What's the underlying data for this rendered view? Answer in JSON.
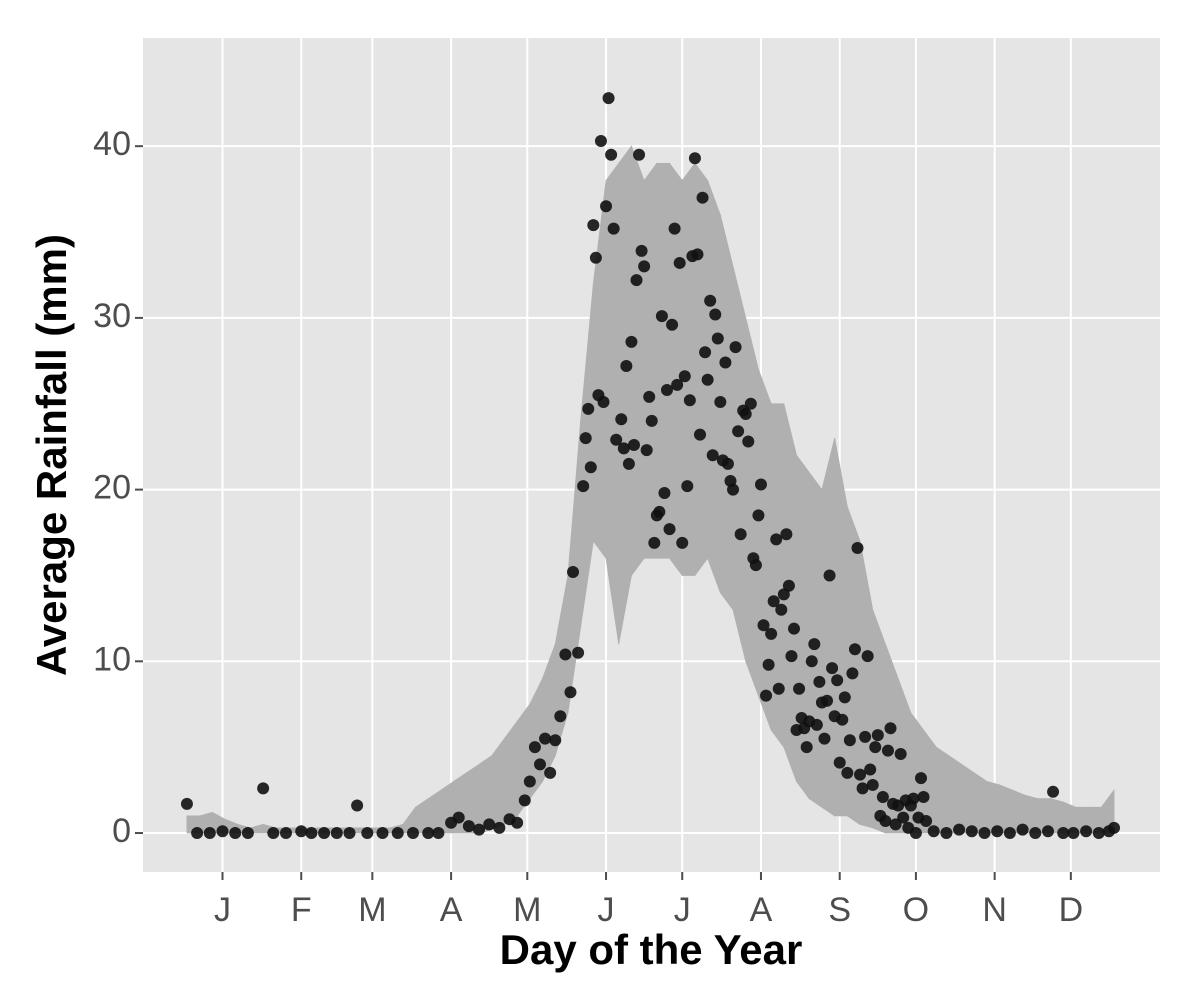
{
  "chart_data": {
    "type": "scatter",
    "x_label": "Day of the Year",
    "y_label": "Average Rainfall (mm)",
    "color": "#111111",
    "x": [
      1,
      5,
      10,
      15,
      20,
      25,
      31,
      35,
      40,
      46,
      50,
      55,
      60,
      65,
      68,
      72,
      78,
      84,
      90,
      96,
      100,
      105,
      108,
      112,
      116,
      120,
      124,
      128,
      131,
      134,
      136,
      138,
      140,
      142,
      144,
      146,
      148,
      150,
      152,
      153,
      155,
      157,
      158,
      159,
      160,
      161,
      162,
      163,
      164,
      165,
      166,
      167,
      168,
      169,
      170,
      172,
      173,
      174,
      175,
      176,
      177,
      178,
      179,
      180,
      181,
      182,
      183,
      184,
      185,
      186,
      187,
      188,
      189,
      190,
      191,
      192,
      193,
      194,
      195,
      196,
      197,
      198,
      199,
      200,
      201,
      202,
      203,
      204,
      205,
      206,
      207,
      208,
      209,
      210,
      211,
      212,
      213,
      214,
      215,
      216,
      217,
      218,
      219,
      220,
      221,
      222,
      223,
      224,
      225,
      226,
      227,
      228,
      229,
      230,
      231,
      232,
      233,
      234,
      235,
      236,
      237,
      238,
      239,
      240,
      241,
      242,
      243,
      244,
      245,
      246,
      247,
      248,
      249,
      250,
      251,
      252,
      253,
      254,
      255,
      256,
      257,
      258,
      259,
      260,
      261,
      262,
      263,
      264,
      265,
      266,
      267,
      268,
      269,
      270,
      271,
      272,
      273,
      274,
      275,
      276,
      277,
      278,
      279,
      280,
      281,
      282,
      283,
      284,
      285,
      286,
      287,
      288,
      289,
      290,
      291,
      292,
      295,
      300,
      305,
      310,
      315,
      320,
      325,
      330,
      335,
      340,
      342,
      346,
      350,
      355,
      360,
      364,
      366
    ],
    "values": [
      1.7,
      0,
      0,
      0.1,
      0,
      0,
      2.6,
      0,
      0,
      0.1,
      0,
      0,
      0,
      0,
      1.6,
      0,
      0,
      0,
      0,
      0,
      0,
      0.6,
      0.9,
      0.4,
      0.2,
      0.5,
      0.3,
      0.8,
      0.6,
      1.9,
      3,
      5,
      4,
      5.5,
      3.5,
      5.4,
      6.8,
      10.4,
      8.2,
      15.2,
      10.5,
      20.2,
      23,
      24.7,
      21.3,
      35.4,
      33.5,
      25.5,
      40.3,
      25.1,
      36.5,
      42.8,
      39.5,
      35.2,
      22.9,
      24.1,
      22.4,
      27.2,
      21.5,
      28.6,
      22.6,
      32.2,
      39.5,
      33.9,
      33,
      22.3,
      25.4,
      24,
      16.9,
      18.5,
      18.7,
      30.1,
      19.8,
      25.8,
      17.7,
      29.6,
      35.2,
      26.1,
      33.2,
      16.9,
      26.6,
      20.2,
      25.2,
      33.6,
      39.3,
      33.7,
      23.2,
      37,
      28,
      26.4,
      31,
      22,
      30.2,
      28.8,
      25.1,
      21.7,
      27.4,
      21.5,
      20.5,
      20,
      28.3,
      23.4,
      17.4,
      24.6,
      24.4,
      22.8,
      25,
      16,
      15.6,
      18.5,
      20.3,
      12.1,
      8,
      9.8,
      11.6,
      13.5,
      17.1,
      8.4,
      13,
      13.9,
      17.4,
      14.4,
      10.3,
      11.9,
      6,
      8.4,
      6.7,
      6.1,
      5,
      6.5,
      10,
      11,
      6.3,
      8.8,
      7.6,
      5.5,
      7.7,
      15,
      9.6,
      6.8,
      8.9,
      4.1,
      6.6,
      7.9,
      3.5,
      5.4,
      9.3,
      10.7,
      16.6,
      3.4,
      2.6,
      5.6,
      10.3,
      3.7,
      2.8,
      5,
      5.7,
      1,
      2.1,
      0.7,
      4.8,
      6.1,
      1.7,
      0.5,
      1.6,
      4.6,
      0.9,
      1.9,
      0.3,
      1.6,
      2,
      0,
      0.9,
      3.2,
      2.1,
      0.7,
      0.1,
      0,
      0.2,
      0.1,
      0,
      0.1,
      0,
      0.2,
      0,
      0.1,
      2.4,
      0,
      0,
      0.1,
      0,
      0.1,
      0.3
    ],
    "band": {
      "color": "#b0b0b0",
      "x": [
        1,
        6,
        11,
        16,
        21,
        26,
        31,
        36,
        41,
        46,
        51,
        56,
        61,
        66,
        71,
        76,
        81,
        86,
        91,
        96,
        101,
        106,
        111,
        116,
        121,
        126,
        131,
        136,
        141,
        146,
        151,
        156,
        161,
        166,
        171,
        176,
        181,
        186,
        191,
        196,
        201,
        206,
        211,
        216,
        221,
        226,
        231,
        236,
        241,
        246,
        251,
        256,
        261,
        266,
        271,
        276,
        281,
        286,
        291,
        296,
        301,
        306,
        311,
        316,
        321,
        326,
        331,
        336,
        341,
        346,
        351,
        356,
        361,
        366
      ],
      "lower": [
        0,
        0,
        0,
        0,
        0,
        0,
        0,
        0,
        0,
        0,
        0,
        0,
        0,
        0,
        0,
        0,
        0,
        0,
        0,
        0,
        0,
        0,
        0,
        0,
        0.2,
        0.5,
        1,
        2,
        3,
        4.5,
        7,
        12,
        17,
        16,
        11,
        15,
        16,
        16,
        16,
        15,
        15,
        16,
        14,
        13,
        10,
        8,
        6,
        5,
        3,
        2,
        1.5,
        1,
        1,
        0.5,
        0.3,
        0,
        0,
        0,
        0,
        0,
        0,
        0,
        0,
        0,
        0,
        0,
        0,
        0,
        0,
        0,
        0,
        0,
        0,
        0
      ],
      "upper": [
        1,
        1,
        1.2,
        0.8,
        0.5,
        0.3,
        0.5,
        0.3,
        0.3,
        0.3,
        0.3,
        0.3,
        0.3,
        0.3,
        0.3,
        0.3,
        0.3,
        0.5,
        1.5,
        2,
        2.5,
        3,
        3.5,
        4,
        4.5,
        5.5,
        6.5,
        7.5,
        9,
        11,
        15,
        24,
        32,
        38,
        39,
        40,
        38,
        39,
        39,
        38,
        39,
        38,
        36,
        33,
        30,
        27,
        25,
        25,
        22,
        21,
        20,
        23,
        19,
        17,
        13,
        11,
        9,
        7,
        6,
        5,
        4.5,
        4,
        3.5,
        3,
        2.8,
        2.5,
        2.2,
        2,
        2,
        1.8,
        1.5,
        1.5,
        1.5,
        2.5
      ]
    },
    "xlim": [
      -16.3,
      384.1
    ],
    "ylim": [
      -2.27,
      46.3
    ],
    "xticks": [
      {
        "value": 15,
        "label": "J"
      },
      {
        "value": 46,
        "label": "F"
      },
      {
        "value": 74,
        "label": "M"
      },
      {
        "value": 105,
        "label": "A"
      },
      {
        "value": 135,
        "label": "M"
      },
      {
        "value": 166,
        "label": "J"
      },
      {
        "value": 196,
        "label": "J"
      },
      {
        "value": 227,
        "label": "A"
      },
      {
        "value": 258,
        "label": "S"
      },
      {
        "value": 288,
        "label": "O"
      },
      {
        "value": 319,
        "label": "N"
      },
      {
        "value": 349,
        "label": "D"
      }
    ],
    "yticks": [
      0,
      10,
      20,
      30,
      40
    ],
    "grid": true
  }
}
